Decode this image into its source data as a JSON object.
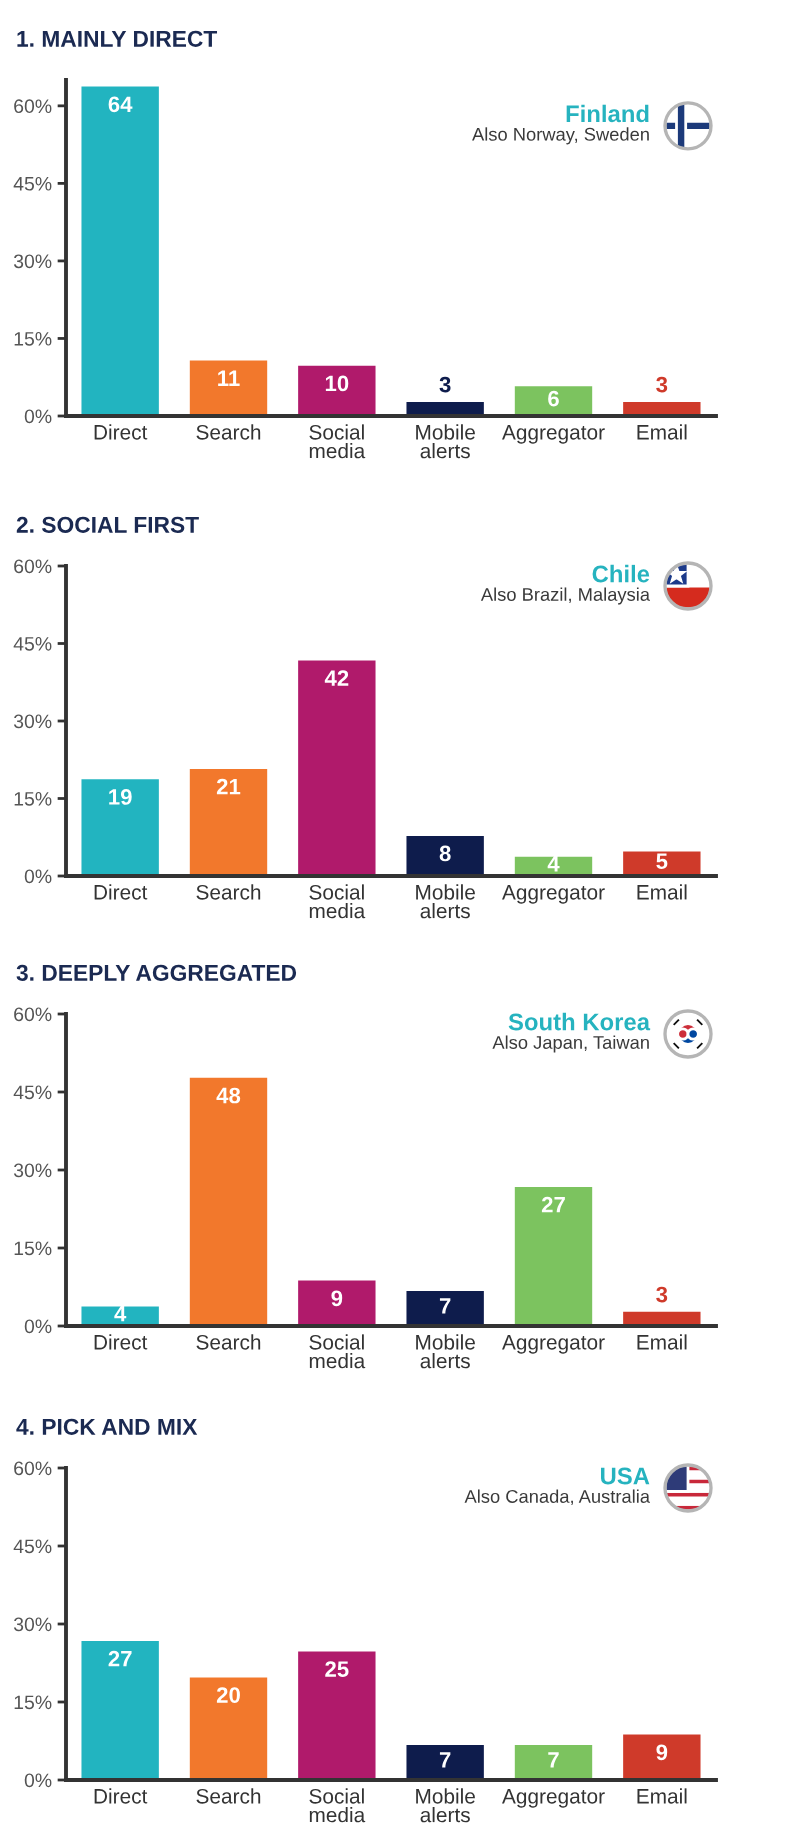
{
  "chart_data": [
    {
      "type": "bar",
      "title": "1. MAINLY DIRECT",
      "categories": [
        "Direct",
        "Search",
        "Social\nmedia",
        "Mobile\nalerts",
        "Aggregator",
        "Email"
      ],
      "values": [
        64,
        11,
        10,
        3,
        6,
        3
      ],
      "colors": [
        "#22b4c0",
        "#f2782c",
        "#b01a6b",
        "#0e1c4c",
        "#7cc35f",
        "#cf3a2a"
      ],
      "ylim": [
        0,
        65
      ],
      "yticks": [
        {
          "value": 0,
          "label": "0%"
        },
        {
          "value": 15,
          "label": "15%"
        },
        {
          "value": 30,
          "label": "30%"
        },
        {
          "value": 45,
          "label": "45%"
        },
        {
          "value": 60,
          "label": "60%"
        }
      ],
      "data_labels": true,
      "annotations": [
        "Finland",
        "Also Norway, Sweden"
      ]
    },
    {
      "type": "bar",
      "title": "2. SOCIAL FIRST",
      "categories": [
        "Direct",
        "Search",
        "Social\nmedia",
        "Mobile\nalerts",
        "Aggregator",
        "Email"
      ],
      "values": [
        19,
        21,
        42,
        8,
        4,
        5
      ],
      "colors": [
        "#22b4c0",
        "#f2782c",
        "#b01a6b",
        "#0e1c4c",
        "#7cc35f",
        "#cf3a2a"
      ],
      "ylim": [
        0,
        60
      ],
      "yticks": [
        {
          "value": 0,
          "label": "0%"
        },
        {
          "value": 15,
          "label": "15%"
        },
        {
          "value": 30,
          "label": "30%"
        },
        {
          "value": 45,
          "label": "45%"
        },
        {
          "value": 60,
          "label": "60%"
        }
      ],
      "data_labels": true,
      "annotations": [
        "Chile",
        "Also Brazil, Malaysia"
      ]
    },
    {
      "type": "bar",
      "title": "3. DEEPLY AGGREGATED",
      "categories": [
        "Direct",
        "Search",
        "Social\nmedia",
        "Mobile\nalerts",
        "Aggregator",
        "Email"
      ],
      "values": [
        4,
        48,
        9,
        7,
        27,
        3
      ],
      "colors": [
        "#22b4c0",
        "#f2782c",
        "#b01a6b",
        "#0e1c4c",
        "#7cc35f",
        "#cf3a2a"
      ],
      "ylim": [
        0,
        60
      ],
      "yticks": [
        {
          "value": 0,
          "label": "0%"
        },
        {
          "value": 15,
          "label": "15%"
        },
        {
          "value": 30,
          "label": "30%"
        },
        {
          "value": 45,
          "label": "45%"
        },
        {
          "value": 60,
          "label": "60%"
        }
      ],
      "data_labels": true,
      "annotations": [
        "South Korea",
        "Also Japan, Taiwan"
      ]
    },
    {
      "type": "bar",
      "title": "4. PICK AND MIX",
      "categories": [
        "Direct",
        "Search",
        "Social\nmedia",
        "Mobile\nalerts",
        "Aggregator",
        "Email"
      ],
      "values": [
        27,
        20,
        25,
        7,
        7,
        9
      ],
      "colors": [
        "#22b4c0",
        "#f2782c",
        "#b01a6b",
        "#0e1c4c",
        "#7cc35f",
        "#cf3a2a"
      ],
      "ylim": [
        0,
        60
      ],
      "yticks": [
        {
          "value": 0,
          "label": "0%"
        },
        {
          "value": 15,
          "label": "15%"
        },
        {
          "value": 30,
          "label": "30%"
        },
        {
          "value": 45,
          "label": "45%"
        },
        {
          "value": 60,
          "label": "60%"
        }
      ],
      "data_labels": true,
      "annotations": [
        "USA",
        "Also Canada, Australia"
      ]
    }
  ]
}
